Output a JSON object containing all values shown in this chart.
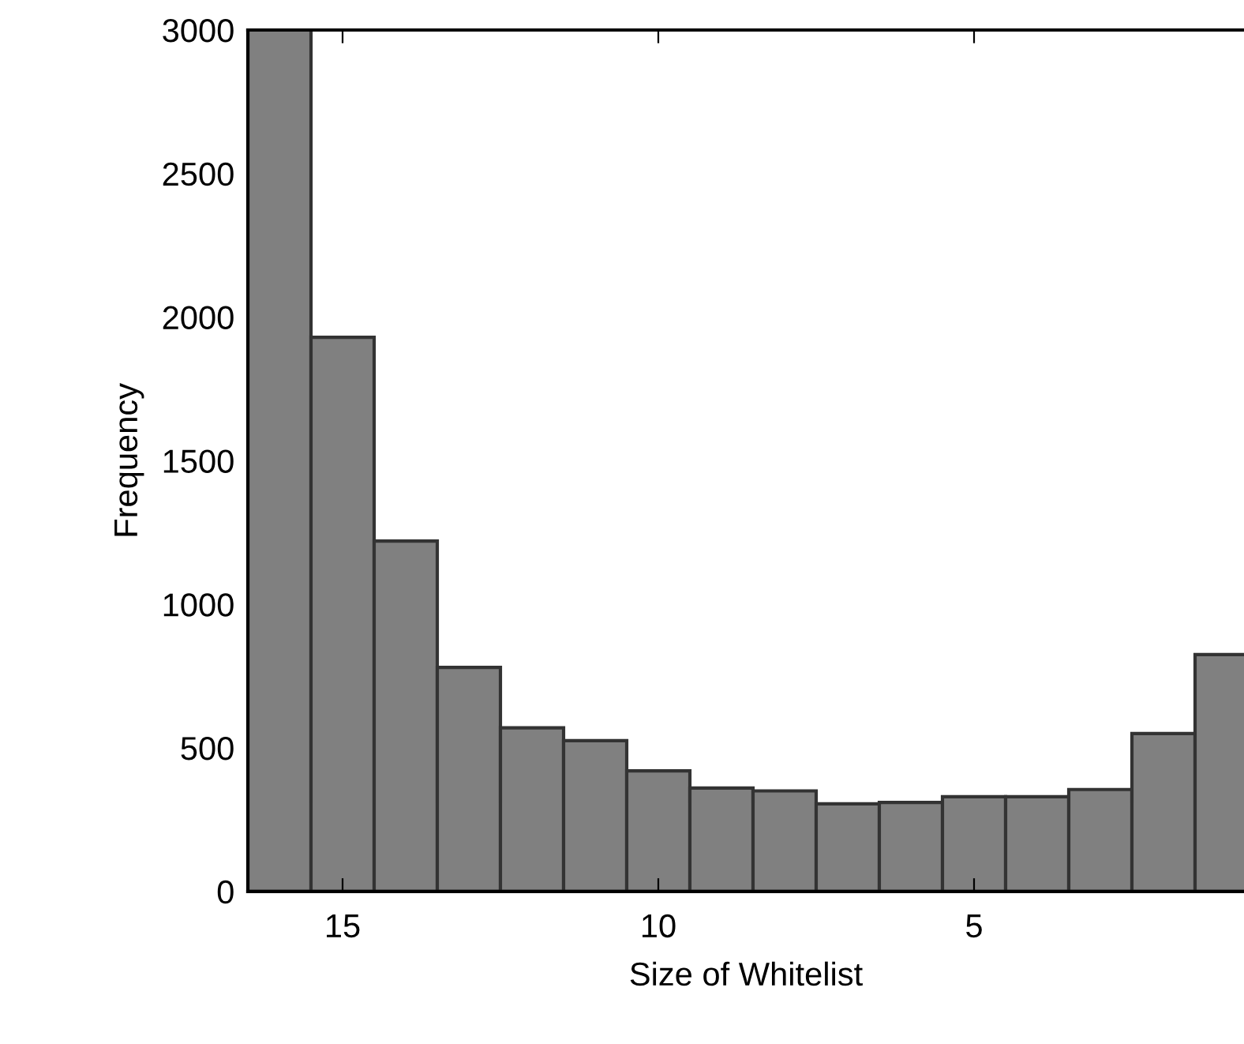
{
  "chart_data": {
    "type": "histogram",
    "xlabel": "Size of Whitelist",
    "ylabel": "Frequency",
    "bins": [
      16.5,
      15.5,
      14.5,
      13.5,
      12.5,
      11.5,
      10.5,
      9.5,
      8.5,
      7.5,
      6.5,
      5.5,
      4.5,
      3.5,
      2.5,
      1.5,
      0.5
    ],
    "values": [
      3000,
      1930,
      1220,
      780,
      570,
      525,
      420,
      360,
      350,
      305,
      310,
      330,
      330,
      355,
      550,
      825
    ],
    "color": "#808080",
    "xlim": [
      16.5,
      0.725
    ],
    "xticks": [
      15,
      10,
      5
    ],
    "ylim": [
      0,
      3000
    ],
    "yticks": [
      0,
      500,
      1000,
      1500,
      2000,
      2500,
      3000
    ],
    "grid": false
  }
}
